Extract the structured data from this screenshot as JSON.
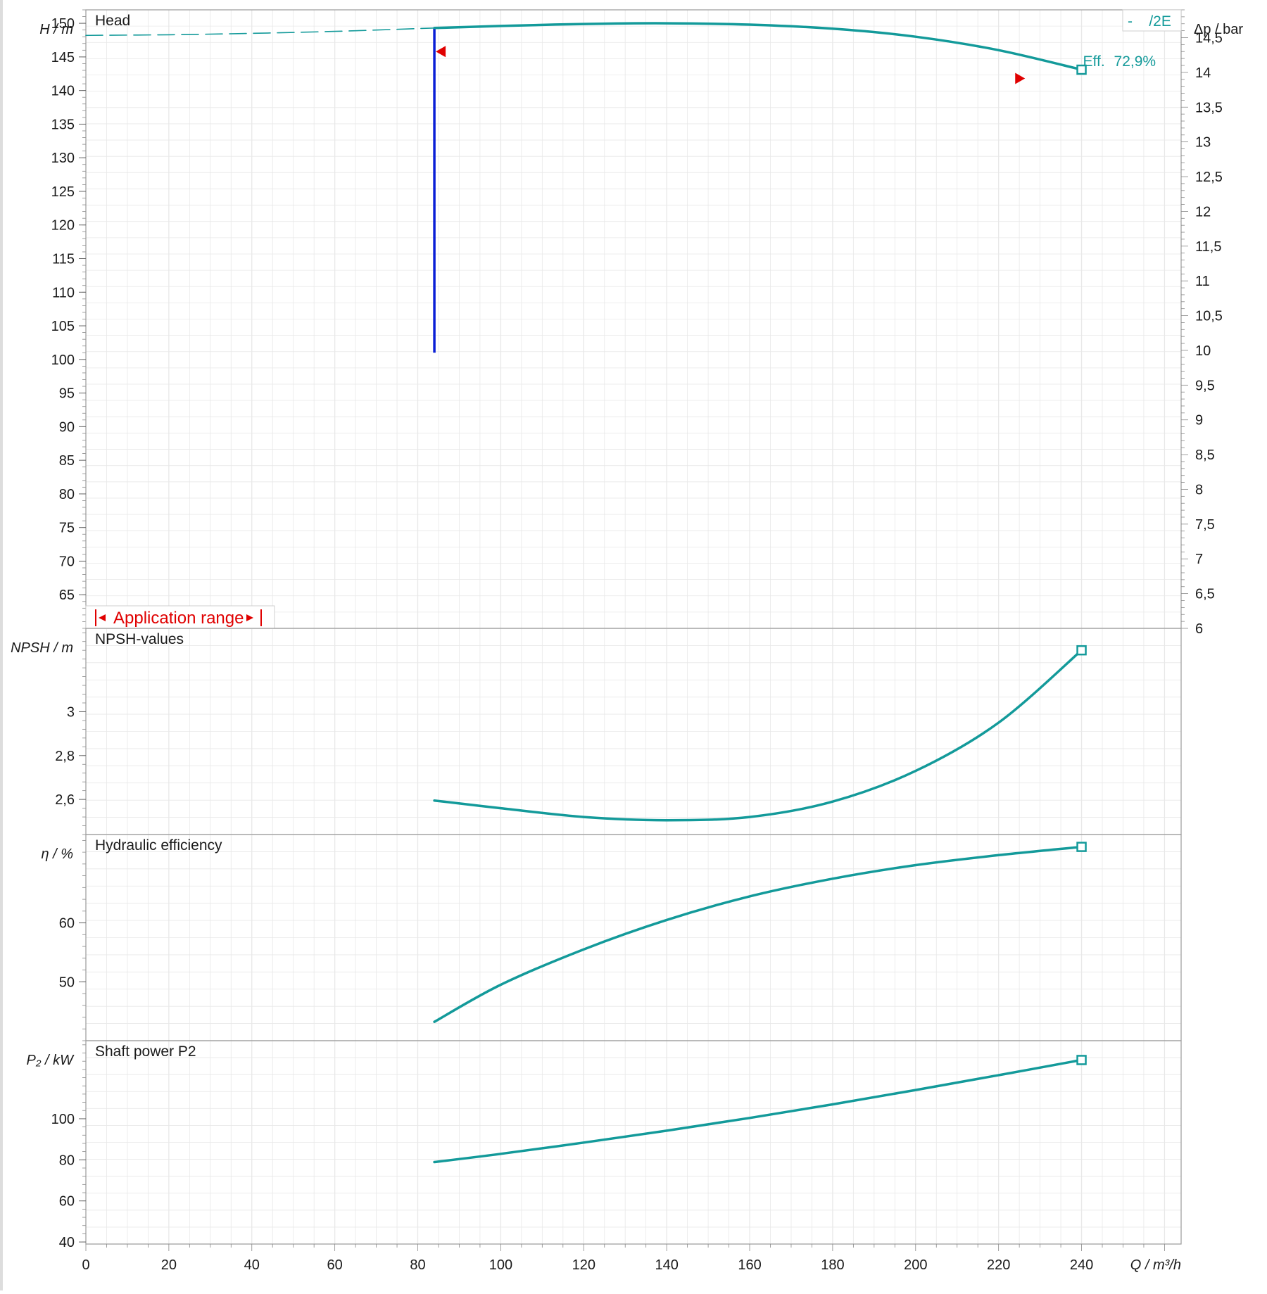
{
  "chart_data": [
    {
      "type": "line",
      "title": "Head",
      "ylabel": "H / m",
      "ylabel_right": "Δp / bar",
      "xlim": [
        0,
        264
      ],
      "ylim": [
        60,
        152
      ],
      "ylim_right": [
        6,
        14.9
      ],
      "yticks": [
        65,
        70,
        75,
        80,
        85,
        90,
        95,
        100,
        105,
        110,
        115,
        120,
        125,
        130,
        135,
        140,
        145,
        150
      ],
      "yticks_right": [
        "6",
        "6,5",
        "7",
        "7,5",
        "8",
        "8,5",
        "9",
        "9,5",
        "10",
        "10,5",
        "11",
        "11,5",
        "12",
        "12,5",
        "13",
        "13,5",
        "14",
        "14,5"
      ],
      "legend": "-    /2E",
      "legend_position": "top-right",
      "grid": true,
      "series": [
        {
          "style": "dashed",
          "x": [
            0,
            20,
            40,
            60,
            84
          ],
          "y": [
            148.2,
            148.3,
            148.5,
            148.8,
            149.3
          ]
        },
        {
          "style": "solid",
          "x": [
            84,
            100,
            120,
            140,
            160,
            180,
            200,
            220,
            240
          ],
          "y": [
            149.3,
            149.6,
            149.9,
            150.0,
            149.8,
            149.2,
            148.0,
            146.0,
            143.1
          ]
        }
      ],
      "operating_point": {
        "x": 240,
        "y": 143.1
      },
      "vertical_marker": {
        "x": 84,
        "y_from": 101,
        "y_to": 149.3
      },
      "range_markers": [
        {
          "x": 84,
          "y": 145.8,
          "dir": "left"
        },
        {
          "x": 224,
          "y": 141.8,
          "dir": "right"
        }
      ],
      "annotations": [
        {
          "label": "Eff.",
          "value": "72,9%"
        }
      ],
      "application_range_label": "Application range"
    },
    {
      "type": "line",
      "title": "NPSH-values",
      "ylabel": "NPSH  / m",
      "xlim": [
        0,
        264
      ],
      "ylim": [
        2.44,
        3.38
      ],
      "yticks": [
        2.6,
        2.8,
        3
      ],
      "ytick_labels": [
        "2,6",
        "2,8",
        "3"
      ],
      "grid": true,
      "series": [
        {
          "style": "solid",
          "x": [
            84,
            100,
            120,
            140,
            160,
            180,
            200,
            220,
            240
          ],
          "y": [
            2.595,
            2.56,
            2.52,
            2.505,
            2.52,
            2.59,
            2.73,
            2.95,
            3.28
          ]
        }
      ],
      "operating_point": {
        "x": 240,
        "y": 3.28
      }
    },
    {
      "type": "line",
      "title": "Hydraulic efficiency",
      "ylabel": "η / %",
      "xlim": [
        0,
        264
      ],
      "ylim": [
        40,
        75
      ],
      "yticks": [
        50,
        60
      ],
      "grid": true,
      "series": [
        {
          "style": "solid",
          "x": [
            84,
            100,
            120,
            140,
            160,
            180,
            200,
            220,
            240
          ],
          "y": [
            43.2,
            49.5,
            55.5,
            60.5,
            64.5,
            67.5,
            69.8,
            71.5,
            72.9
          ]
        }
      ],
      "operating_point": {
        "x": 240,
        "y": 72.9
      }
    },
    {
      "type": "line",
      "title": "Shaft power P2",
      "ylabel": "P₂ / kW",
      "xlabel": "Q / m³/h",
      "xlim": [
        0,
        264
      ],
      "xticks": [
        0,
        20,
        40,
        60,
        80,
        100,
        120,
        140,
        160,
        180,
        200,
        220,
        240
      ],
      "ylim": [
        39,
        138
      ],
      "yticks": [
        40,
        60,
        80,
        100
      ],
      "grid": true,
      "series": [
        {
          "style": "solid",
          "x": [
            84,
            100,
            120,
            140,
            160,
            180,
            200,
            220,
            240
          ],
          "y": [
            78.9,
            82.9,
            88.4,
            94.2,
            100.4,
            107,
            114,
            121.2,
            128.6
          ]
        }
      ],
      "operating_point": {
        "x": 240,
        "y": 128.6
      }
    }
  ],
  "colors": {
    "curve": "#139a9a",
    "marker_line": "#0a1fd6",
    "range_marker": "#e00000",
    "grid": "#e8e8e8",
    "frame": "#9a9a9a",
    "left_bar": "#dddddd"
  }
}
